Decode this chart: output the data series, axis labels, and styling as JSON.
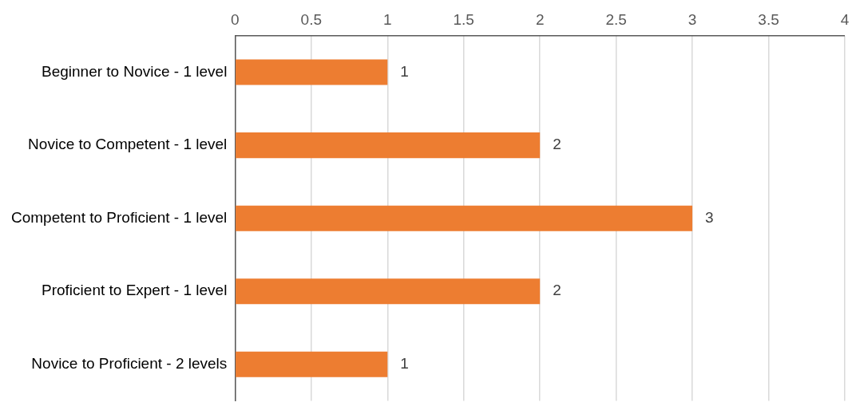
{
  "chart_data": {
    "type": "bar",
    "orientation": "horizontal",
    "categories": [
      "Beginner to Novice - 1 level",
      "Novice to Competent - 1 level",
      "Competent to Proficient - 1 level",
      "Proficient to Expert - 1 level",
      "Novice to Proficient - 2 levels"
    ],
    "values": [
      1,
      2,
      3,
      2,
      1
    ],
    "color": "#ed7d31",
    "xlim": [
      0,
      4
    ],
    "xticks": [
      0,
      0.5,
      1,
      1.5,
      2,
      2.5,
      3,
      3.5,
      4
    ],
    "grid": "x",
    "legend": false,
    "data_labels": true
  }
}
